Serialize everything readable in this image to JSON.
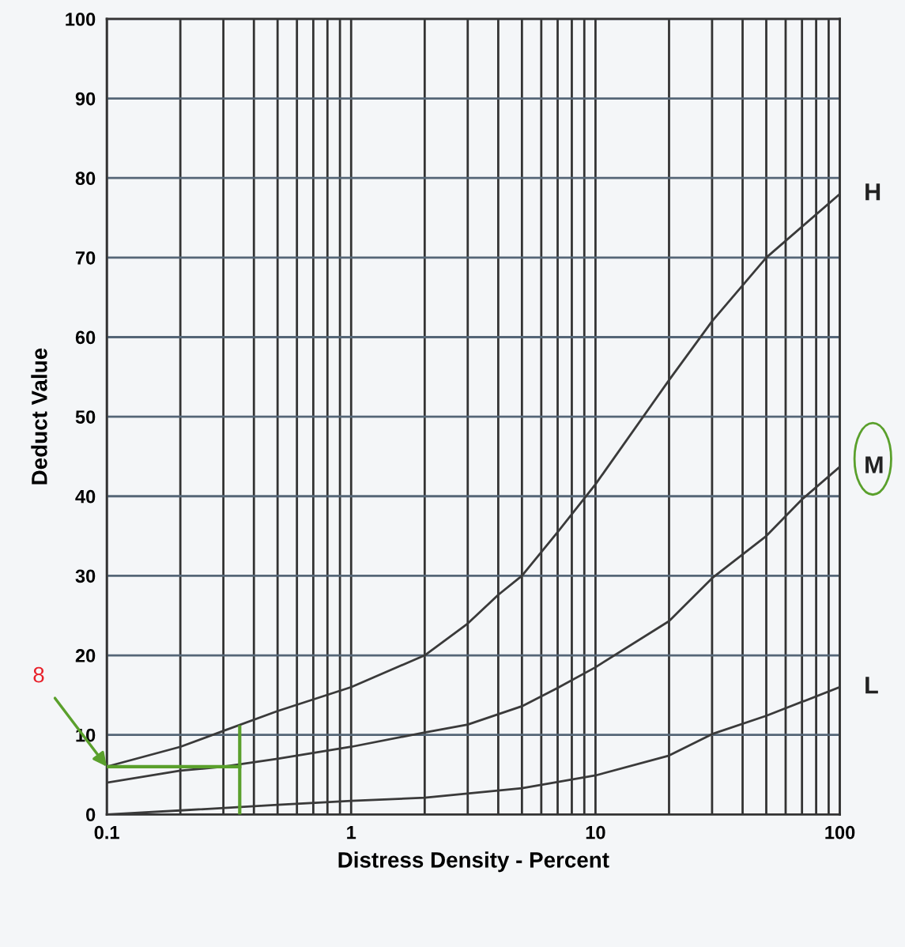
{
  "chart_data": {
    "type": "line",
    "xlabel": "Distress Density - Percent",
    "ylabel": "Deduct Value",
    "log": "x",
    "xlim": [
      0.1,
      100
    ],
    "ylim": [
      0,
      100
    ],
    "xticks": [
      {
        "value": 0.1,
        "label": "0.1"
      },
      {
        "value": 0.2,
        "label": null
      },
      {
        "value": 0.3,
        "label": null
      },
      {
        "value": 0.4,
        "label": null
      },
      {
        "value": 0.5,
        "label": null
      },
      {
        "value": 0.6,
        "label": null
      },
      {
        "value": 0.7,
        "label": null
      },
      {
        "value": 0.8,
        "label": null
      },
      {
        "value": 0.9,
        "label": null
      },
      1,
      {
        "value": 2,
        "label": null
      },
      {
        "value": 3,
        "label": null
      },
      {
        "value": 4,
        "label": null
      },
      {
        "value": 5,
        "label": null
      },
      {
        "value": 6,
        "label": null
      },
      {
        "value": 7,
        "label": null
      },
      {
        "value": 8,
        "label": null
      },
      {
        "value": 9,
        "label": null
      },
      10,
      {
        "value": 20,
        "label": null
      },
      {
        "value": 30,
        "label": null
      },
      {
        "value": 40,
        "label": null
      },
      {
        "value": 50,
        "label": null
      },
      {
        "value": 60,
        "label": null
      },
      {
        "value": 70,
        "label": null
      },
      {
        "value": 80,
        "label": null
      },
      {
        "value": 90,
        "label": null
      },
      100
    ],
    "yticks": [
      0,
      10,
      20,
      30,
      40,
      50,
      60,
      70,
      80,
      90,
      100
    ],
    "grid": true,
    "legend": false,
    "marker": "none",
    "line_style": "solid",
    "series": [
      {
        "name": "H",
        "color": "#3a3a3a",
        "x": [
          0.1,
          0.2,
          0.3,
          0.5,
          1,
          2,
          3,
          4,
          5,
          7,
          10,
          20,
          30,
          50,
          100
        ],
        "values": [
          6,
          8.5,
          10.5,
          13,
          16,
          20,
          24,
          27.6,
          30,
          35.5,
          41.5,
          54.6,
          62,
          70,
          78
        ]
      },
      {
        "name": "M",
        "color": "#3a3a3a",
        "x": [
          0.1,
          0.2,
          0.3,
          0.5,
          1,
          2,
          3,
          5,
          7,
          10,
          20,
          30,
          50,
          70,
          100
        ],
        "values": [
          4,
          5.5,
          6,
          7,
          8.5,
          10.3,
          11.3,
          13.6,
          15.9,
          18.5,
          24.3,
          29.7,
          35,
          39.6,
          43.7
        ]
      },
      {
        "name": "L",
        "color": "#3a3a3a",
        "x": [
          0.1,
          0.2,
          0.5,
          1,
          2,
          5,
          10,
          20,
          30,
          50,
          100
        ],
        "values": [
          0,
          0.5,
          1.2,
          1.7,
          2.1,
          3.3,
          4.9,
          7.4,
          10.1,
          12.4,
          16
        ]
      },
      {
        "color": "#5aa02c",
        "x": [
          0.1,
          0.35
        ],
        "values": [
          6,
          6
        ]
      },
      {
        "color": "#5aa02c",
        "x": [
          0.35,
          0.35
        ],
        "values": [
          0,
          11
        ]
      }
    ],
    "annotations": [
      {
        "text": "8",
        "x": 0.1,
        "y": 6
      }
    ]
  }
}
